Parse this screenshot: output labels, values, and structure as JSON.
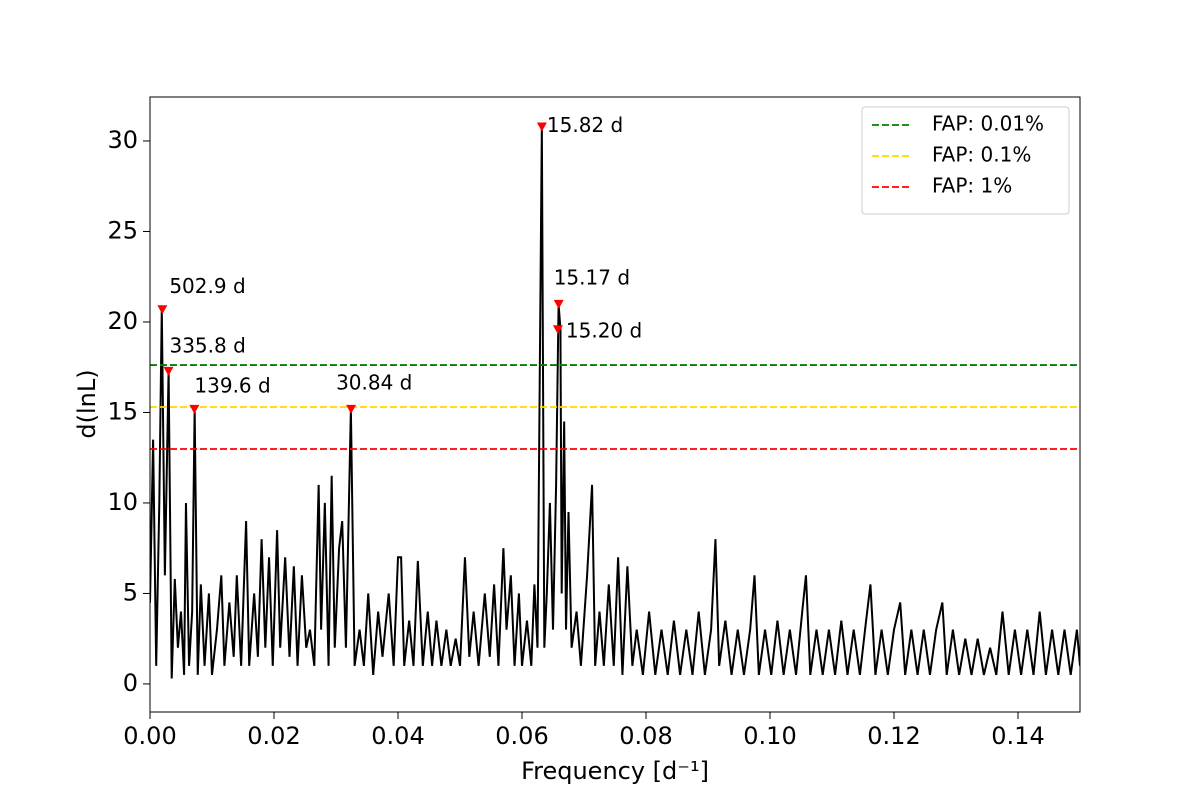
{
  "chart_data": {
    "type": "line",
    "xlabel": "Frequency [d⁻¹]",
    "ylabel": "d(lnL)",
    "color": "#000000",
    "x": [
      0.0,
      0.0005,
      0.001,
      0.0015,
      0.0019,
      0.0024,
      0.003,
      0.0035,
      0.004,
      0.0045,
      0.005,
      0.0055,
      0.0058,
      0.0063,
      0.0068,
      0.0072,
      0.0077,
      0.0082,
      0.0088,
      0.0095,
      0.01,
      0.0108,
      0.0115,
      0.012,
      0.0128,
      0.0135,
      0.014,
      0.0147,
      0.0155,
      0.016,
      0.0168,
      0.0174,
      0.018,
      0.0186,
      0.0192,
      0.0198,
      0.0205,
      0.021,
      0.0218,
      0.0225,
      0.0232,
      0.0238,
      0.0245,
      0.0252,
      0.0258,
      0.0265,
      0.0272,
      0.0276,
      0.0282,
      0.0288,
      0.0293,
      0.0298,
      0.0305,
      0.031,
      0.0316,
      0.0324,
      0.033,
      0.0338,
      0.0345,
      0.0352,
      0.036,
      0.0368,
      0.0375,
      0.0385,
      0.0393,
      0.04,
      0.0405,
      0.041,
      0.0418,
      0.0425,
      0.0432,
      0.044,
      0.0448,
      0.0455,
      0.0462,
      0.047,
      0.0478,
      0.0485,
      0.0493,
      0.05,
      0.0508,
      0.0515,
      0.0522,
      0.053,
      0.054,
      0.0548,
      0.0555,
      0.0562,
      0.057,
      0.0575,
      0.0582,
      0.0588,
      0.0595,
      0.06,
      0.0608,
      0.0615,
      0.062,
      0.0625,
      0.0632,
      0.0636,
      0.064,
      0.0645,
      0.065,
      0.0655,
      0.0659,
      0.0662,
      0.0664,
      0.0668,
      0.0671,
      0.0675,
      0.068,
      0.0688,
      0.0695,
      0.0705,
      0.0713,
      0.0718,
      0.0725,
      0.0732,
      0.074,
      0.0748,
      0.0755,
      0.0762,
      0.077,
      0.0778,
      0.0785,
      0.0795,
      0.0805,
      0.0815,
      0.0825,
      0.0835,
      0.0845,
      0.0855,
      0.0865,
      0.0875,
      0.0885,
      0.0895,
      0.0905,
      0.0912,
      0.0918,
      0.0928,
      0.0938,
      0.0948,
      0.0958,
      0.0968,
      0.0975,
      0.0982,
      0.0992,
      0.1002,
      0.1012,
      0.1022,
      0.1032,
      0.1042,
      0.1052,
      0.1058,
      0.1065,
      0.1075,
      0.1085,
      0.1095,
      0.1105,
      0.1115,
      0.1125,
      0.1135,
      0.1145,
      0.1155,
      0.1162,
      0.117,
      0.118,
      0.119,
      0.12,
      0.121,
      0.1218,
      0.1228,
      0.1238,
      0.1248,
      0.1258,
      0.1268,
      0.1278,
      0.1285,
      0.1295,
      0.1305,
      0.1315,
      0.1325,
      0.1335,
      0.1345,
      0.1355,
      0.1365,
      0.1375,
      0.1385,
      0.1395,
      0.1405,
      0.1415,
      0.1425,
      0.1435,
      0.1445,
      0.1455,
      0.1465,
      0.1475,
      0.1485,
      0.1495,
      0.15
    ],
    "values": [
      4.5,
      13.5,
      1.0,
      10.0,
      20.7,
      6.0,
      17.3,
      0.3,
      5.8,
      2.0,
      4.0,
      0.5,
      10.0,
      1.0,
      4.0,
      15.2,
      0.5,
      5.5,
      1.0,
      5.0,
      0.5,
      3.0,
      6.0,
      1.0,
      4.5,
      1.5,
      6.0,
      1.0,
      9.0,
      1.0,
      5.0,
      1.5,
      8.0,
      2.0,
      7.0,
      1.0,
      8.5,
      2.0,
      7.0,
      1.5,
      6.5,
      1.0,
      6.0,
      2.0,
      3.0,
      1.0,
      11.0,
      3.0,
      10.0,
      1.0,
      11.5,
      2.0,
      7.5,
      9.0,
      2.0,
      15.2,
      1.0,
      3.0,
      1.0,
      5.0,
      0.5,
      4.0,
      1.5,
      5.0,
      1.0,
      7.0,
      7.0,
      1.0,
      3.5,
      1.0,
      6.8,
      1.0,
      4.0,
      1.0,
      3.5,
      1.0,
      3.0,
      1.0,
      2.5,
      1.0,
      7.0,
      1.5,
      4.0,
      1.0,
      5.0,
      1.5,
      5.5,
      1.0,
      7.5,
      3.0,
      6.0,
      1.0,
      5.0,
      1.0,
      3.5,
      1.0,
      5.5,
      2.0,
      30.8,
      2.0,
      5.0,
      10.0,
      3.0,
      11.0,
      21.0,
      19.6,
      5.0,
      14.5,
      3.0,
      9.5,
      2.0,
      4.0,
      1.0,
      6.0,
      11.0,
      1.0,
      4.0,
      1.0,
      5.5,
      1.0,
      7.0,
      0.5,
      6.5,
      1.0,
      3.0,
      0.5,
      4.0,
      0.5,
      3.0,
      0.5,
      3.5,
      0.5,
      3.0,
      0.5,
      4.0,
      0.5,
      3.0,
      8.0,
      1.0,
      3.5,
      0.5,
      3.0,
      0.5,
      3.0,
      6.0,
      0.5,
      3.0,
      0.5,
      3.5,
      0.5,
      3.0,
      0.5,
      4.0,
      6.0,
      0.5,
      3.0,
      0.5,
      3.0,
      0.5,
      3.5,
      0.5,
      3.0,
      0.5,
      3.5,
      5.5,
      0.5,
      3.0,
      0.5,
      3.0,
      4.5,
      0.5,
      3.0,
      0.5,
      3.0,
      0.5,
      3.0,
      4.5,
      0.5,
      3.0,
      0.5,
      2.5,
      0.5,
      2.5,
      0.5,
      2.0,
      0.5,
      4.0,
      0.5,
      3.0,
      0.5,
      3.0,
      0.5,
      4.0,
      0.5,
      3.0,
      0.5,
      3.0,
      0.5,
      3.0,
      1.0
    ],
    "peaks": {
      "color": "#ff0000",
      "x": [
        0.00199,
        0.00298,
        0.00716,
        0.03243,
        0.06321,
        0.06592,
        0.06579
      ],
      "values": [
        20.7,
        17.3,
        15.2,
        15.2,
        30.8,
        21.0,
        19.6
      ],
      "labels": [
        "502.9 d",
        "335.8 d",
        "139.6 d",
        "30.84 d",
        "15.82 d",
        "15.17 d",
        "15.20 d"
      ]
    },
    "hlines": [
      {
        "name": "FAP: 0.01%",
        "value": 17.62,
        "color": "#008000"
      },
      {
        "name": "FAP: 0.1%",
        "value": 15.3,
        "color": "#ffd700"
      },
      {
        "name": "FAP: 1%",
        "value": 12.98,
        "color": "#ff0000"
      }
    ],
    "legend": "upper right",
    "xlim": [
      0,
      0.15
    ],
    "ylim": [
      -1.55,
      32.43
    ],
    "xticks": [
      {
        "value": 0,
        "label": "0.00"
      },
      0.02,
      0.04,
      0.06,
      0.08,
      {
        "value": 0.1,
        "label": "0.10"
      },
      0.12,
      0.14
    ],
    "yticks": [
      0,
      5,
      10,
      15,
      20,
      25,
      30
    ]
  }
}
